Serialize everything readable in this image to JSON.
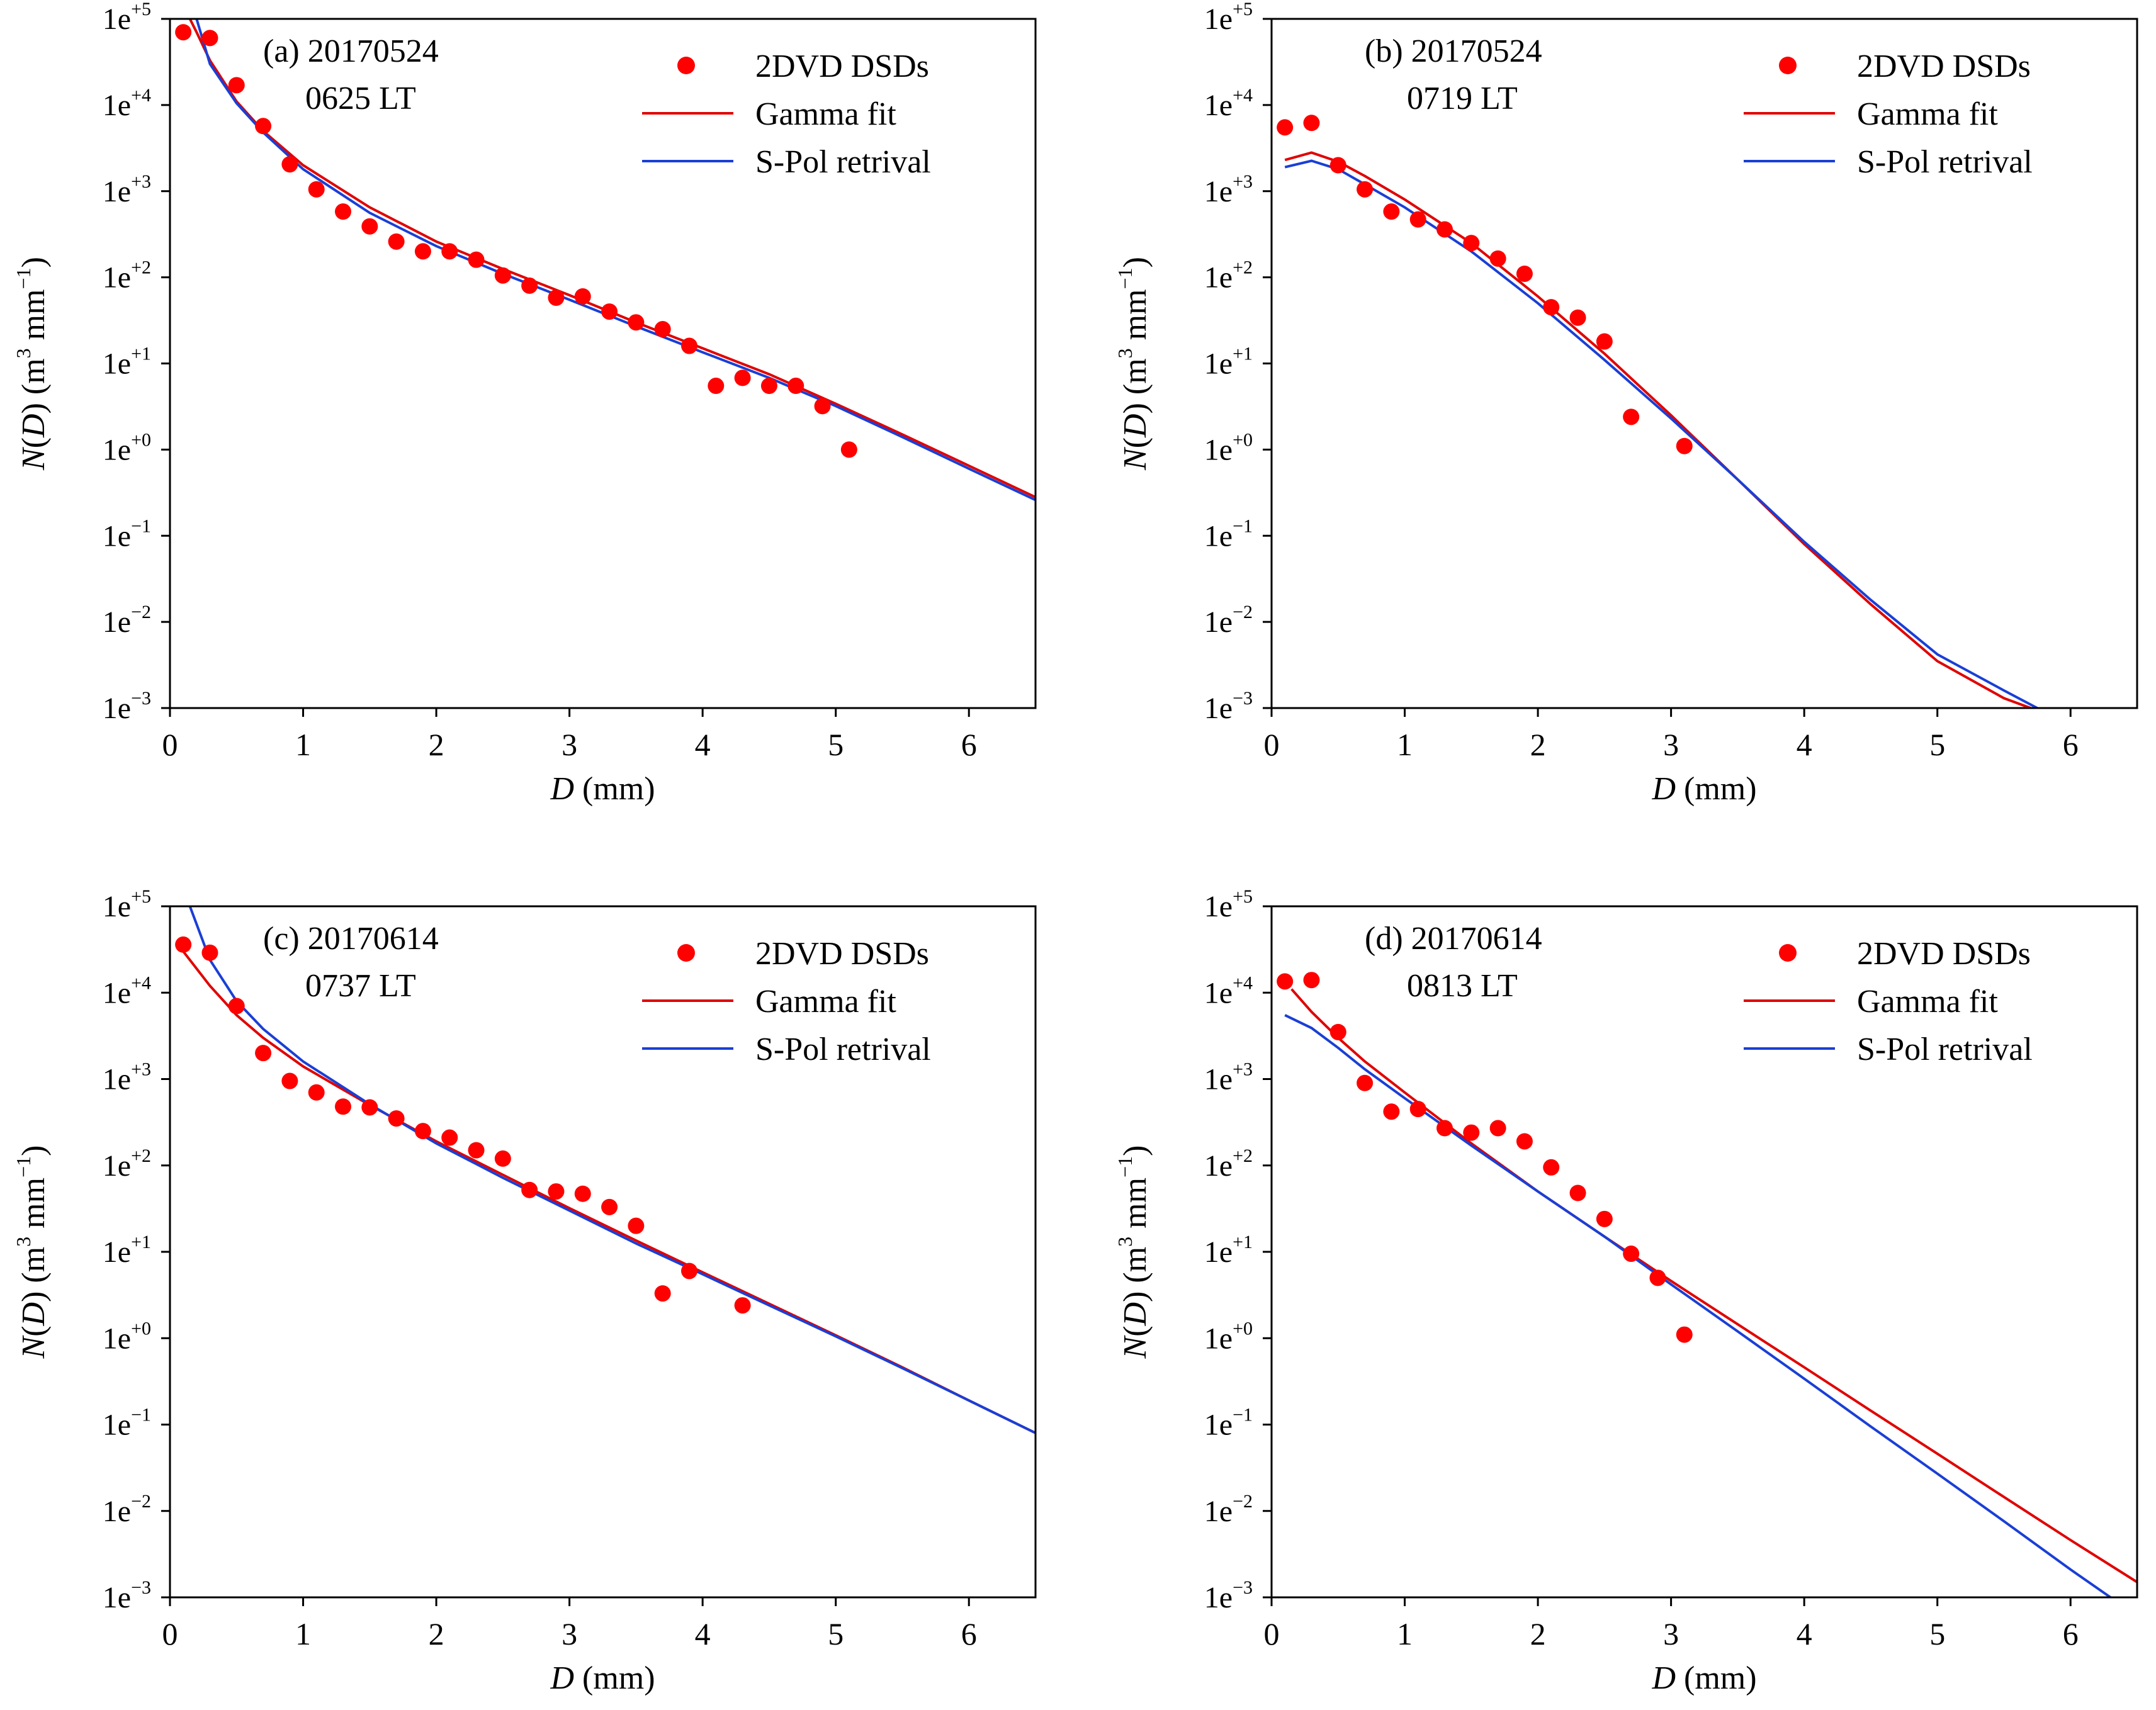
{
  "colors": {
    "dvd": "#ff0000",
    "gamma": "#e00000",
    "spol": "#1a3fd6",
    "axis": "#000000"
  },
  "legend_labels": [
    "2DVD DSDs",
    "Gamma fit",
    "S-Pol retrival"
  ],
  "chart_data": [
    {
      "type": "scatter+line",
      "panel": "a",
      "title_line1": "(a) 20170524",
      "title_line2": "0625 LT",
      "xlabel_italic": "D",
      "xlabel_rest": " (mm)",
      "ylabel_italic": "N",
      "ylabel_d_italic": "D",
      "ylabel_rest": " (m",
      "ylabel_unit_tail": " mm",
      "ylabel_exp1": "3",
      "ylabel_exp2": "−1",
      "xlim": [
        0,
        6.5
      ],
      "ylim_log10": [
        -3,
        5
      ],
      "xticks": [
        0,
        1,
        2,
        3,
        4,
        5,
        6
      ],
      "xtick_labels": [
        "0",
        "1",
        "2",
        "3",
        "4",
        "5",
        "6"
      ],
      "ytick_base": "1e",
      "yticks_log10": [
        5,
        4,
        3,
        2,
        1,
        0,
        -1,
        -2,
        -3
      ],
      "ytick_exps": [
        "+5",
        "+4",
        "+3",
        "+2",
        "+1",
        "+0",
        "−1",
        "−2",
        "−3"
      ],
      "series": [
        {
          "name": "2DVD DSDs",
          "kind": "scatter",
          "x": [
            0.1,
            0.3,
            0.5,
            0.7,
            0.9,
            1.1,
            1.3,
            1.5,
            1.7,
            1.9,
            2.1,
            2.3,
            2.5,
            2.7,
            2.9,
            3.1,
            3.3,
            3.5,
            3.7,
            3.9,
            4.1,
            4.3,
            4.5,
            4.7,
            4.9,
            5.1
          ],
          "y": [
            70000,
            60000,
            17000,
            5700,
            2050,
            1050,
            580,
            390,
            260,
            200,
            200,
            160,
            105,
            80,
            58,
            60,
            40,
            30,
            25,
            16,
            5.5,
            6.8,
            5.5,
            5.5,
            3.2,
            1.0
          ]
        },
        {
          "name": "Gamma fit",
          "kind": "line",
          "x": [
            0.15,
            0.2,
            0.3,
            0.5,
            0.7,
            1.0,
            1.5,
            2.0,
            2.5,
            3.0,
            3.5,
            4.0,
            4.5,
            5.0,
            5.5,
            6.0,
            6.5
          ],
          "y": [
            100000,
            70000,
            33000,
            11000,
            5000,
            2000,
            650,
            260,
            125,
            62,
            30,
            15,
            7.5,
            3.4,
            1.5,
            0.65,
            0.28
          ]
        },
        {
          "name": "S-Pol retrival",
          "kind": "line",
          "x": [
            0.2,
            0.3,
            0.5,
            0.7,
            1.0,
            1.5,
            2.0,
            2.5,
            3.0,
            3.5,
            4.0,
            4.5,
            5.0,
            5.5,
            6.0,
            6.5
          ],
          "y": [
            100000,
            30000,
            10500,
            4800,
            1800,
            560,
            230,
            110,
            55,
            27,
            13.5,
            6.8,
            3.2,
            1.4,
            0.6,
            0.26
          ]
        }
      ]
    },
    {
      "type": "scatter+line",
      "panel": "b",
      "title_line1": "(b) 20170524",
      "title_line2": "0719 LT",
      "xlabel_italic": "D",
      "xlabel_rest": " (mm)",
      "ylabel_italic": "N",
      "ylabel_d_italic": "D",
      "ylabel_rest": " (m",
      "ylabel_unit_tail": " mm",
      "ylabel_exp1": "3",
      "ylabel_exp2": "−1",
      "xlim": [
        0,
        6.5
      ],
      "ylim_log10": [
        -3,
        5
      ],
      "xticks": [
        0,
        1,
        2,
        3,
        4,
        5,
        6
      ],
      "xtick_labels": [
        "0",
        "1",
        "2",
        "3",
        "4",
        "5",
        "6"
      ],
      "ytick_base": "1e",
      "yticks_log10": [
        5,
        4,
        3,
        2,
        1,
        0,
        -1,
        -2,
        -3
      ],
      "ytick_exps": [
        "+5",
        "+4",
        "+3",
        "+2",
        "+1",
        "+0",
        "−1",
        "−2",
        "−3"
      ],
      "series": [
        {
          "name": "2DVD DSDs",
          "kind": "scatter",
          "x": [
            0.1,
            0.3,
            0.5,
            0.7,
            0.9,
            1.1,
            1.3,
            1.5,
            1.7,
            1.9,
            2.1,
            2.3,
            2.5,
            2.7,
            3.1
          ],
          "y": [
            5500,
            6200,
            2000,
            1050,
            580,
            470,
            360,
            250,
            165,
            110,
            45,
            34,
            18,
            2.4,
            1.1
          ]
        },
        {
          "name": "Gamma fit",
          "kind": "line",
          "x": [
            0.1,
            0.3,
            0.5,
            0.7,
            1.0,
            1.5,
            2.0,
            2.5,
            3.0,
            3.5,
            4.0,
            4.5,
            5.0,
            5.5,
            5.7
          ],
          "y": [
            2300,
            2800,
            2200,
            1500,
            800,
            250,
            60,
            13,
            2.5,
            0.45,
            0.08,
            0.016,
            0.0035,
            0.0013,
            0.001
          ]
        },
        {
          "name": "S-Pol retrival",
          "kind": "line",
          "x": [
            0.1,
            0.3,
            0.5,
            0.7,
            1.0,
            1.5,
            2.0,
            2.5,
            3.0,
            3.5,
            4.0,
            4.5,
            5.0,
            5.5,
            5.75
          ],
          "y": [
            1900,
            2250,
            1800,
            1200,
            650,
            200,
            50,
            11,
            2.3,
            0.45,
            0.085,
            0.018,
            0.0042,
            0.0016,
            0.001
          ]
        }
      ]
    },
    {
      "type": "scatter+line",
      "panel": "c",
      "title_line1": "(c) 20170614",
      "title_line2": "0737 LT",
      "xlabel_italic": "D",
      "xlabel_rest": " (mm)",
      "ylabel_italic": "N",
      "ylabel_d_italic": "D",
      "ylabel_rest": " (m",
      "ylabel_unit_tail": " mm",
      "ylabel_exp1": "3",
      "ylabel_exp2": "−1",
      "xlim": [
        0,
        6.5
      ],
      "ylim_log10": [
        -3,
        5
      ],
      "xticks": [
        0,
        1,
        2,
        3,
        4,
        5,
        6
      ],
      "xtick_labels": [
        "0",
        "1",
        "2",
        "3",
        "4",
        "5",
        "6"
      ],
      "ytick_base": "1e",
      "yticks_log10": [
        5,
        4,
        3,
        2,
        1,
        0,
        -1,
        -2,
        -3
      ],
      "ytick_exps": [
        "+5",
        "+4",
        "+3",
        "+2",
        "+1",
        "+0",
        "−1",
        "−2",
        "−3"
      ],
      "series": [
        {
          "name": "2DVD DSDs",
          "kind": "scatter",
          "x": [
            0.1,
            0.3,
            0.5,
            0.7,
            0.9,
            1.1,
            1.3,
            1.5,
            1.7,
            1.9,
            2.1,
            2.3,
            2.5,
            2.7,
            2.9,
            3.1,
            3.3,
            3.5,
            3.7,
            3.9,
            4.3
          ],
          "y": [
            36000,
            29000,
            7000,
            2000,
            950,
            700,
            480,
            470,
            350,
            250,
            210,
            150,
            120,
            52,
            50,
            47,
            33,
            20,
            3.3,
            6.0,
            2.4
          ]
        },
        {
          "name": "Gamma fit",
          "kind": "line",
          "x": [
            0.1,
            0.3,
            0.5,
            0.7,
            1.0,
            1.5,
            2.0,
            2.5,
            3.0,
            3.5,
            4.0,
            4.5,
            5.0,
            5.5,
            6.0,
            6.5
          ],
          "y": [
            30000,
            12000,
            5500,
            3000,
            1400,
            500,
            190,
            78,
            32,
            13.5,
            5.8,
            2.5,
            1.08,
            0.46,
            0.19,
            0.08
          ]
        },
        {
          "name": "S-Pol retrival",
          "kind": "line",
          "x": [
            0.15,
            0.3,
            0.5,
            0.7,
            1.0,
            1.5,
            2.0,
            2.5,
            3.0,
            3.5,
            4.0,
            4.5,
            5.0,
            5.5,
            6.0,
            6.5
          ],
          "y": [
            100000,
            24000,
            8000,
            3800,
            1600,
            510,
            180,
            72,
            30,
            12.5,
            5.5,
            2.4,
            1.05,
            0.45,
            0.19,
            0.08
          ]
        }
      ]
    },
    {
      "type": "scatter+line",
      "panel": "d",
      "title_line1": "(d) 20170614",
      "title_line2": "0813 LT",
      "xlabel_italic": "D",
      "xlabel_rest": " (mm)",
      "ylabel_italic": "N",
      "ylabel_d_italic": "D",
      "ylabel_rest": " (m",
      "ylabel_unit_tail": " mm",
      "ylabel_exp1": "3",
      "ylabel_exp2": "−1",
      "xlim": [
        0,
        6.5
      ],
      "ylim_log10": [
        -3,
        5
      ],
      "xticks": [
        0,
        1,
        2,
        3,
        4,
        5,
        6
      ],
      "xtick_labels": [
        "0",
        "1",
        "2",
        "3",
        "4",
        "5",
        "6"
      ],
      "ytick_base": "1e",
      "yticks_log10": [
        5,
        4,
        3,
        2,
        1,
        0,
        -1,
        -2,
        -3
      ],
      "ytick_exps": [
        "+5",
        "+4",
        "+3",
        "+2",
        "+1",
        "+0",
        "−1",
        "−2",
        "−3"
      ],
      "series": [
        {
          "name": "2DVD DSDs",
          "kind": "scatter",
          "x": [
            0.1,
            0.3,
            0.5,
            0.7,
            0.9,
            1.1,
            1.3,
            1.5,
            1.7,
            1.9,
            2.1,
            2.3,
            2.5,
            2.7,
            2.9,
            3.1
          ],
          "y": [
            13500,
            14000,
            3500,
            900,
            420,
            450,
            270,
            240,
            270,
            190,
            95,
            48,
            24,
            9.5,
            5.0,
            1.1
          ]
        },
        {
          "name": "Gamma fit",
          "kind": "line",
          "x": [
            0.15,
            0.3,
            0.5,
            0.7,
            1.0,
            1.5,
            2.0,
            2.5,
            3.0,
            3.5,
            4.0,
            4.5,
            5.0,
            5.5,
            6.0,
            6.5
          ],
          "y": [
            11000,
            6000,
            3000,
            1600,
            700,
            180,
            50,
            15,
            4.6,
            1.45,
            0.46,
            0.145,
            0.046,
            0.0145,
            0.0046,
            0.0015
          ]
        },
        {
          "name": "S-Pol retrival",
          "kind": "line",
          "x": [
            0.1,
            0.3,
            0.5,
            0.7,
            1.0,
            1.5,
            2.0,
            2.5,
            3.0,
            3.5,
            4.0,
            4.5,
            5.0,
            5.5,
            6.0,
            6.3
          ],
          "y": [
            5500,
            3900,
            2300,
            1300,
            600,
            170,
            50,
            15,
            4.2,
            1.2,
            0.34,
            0.095,
            0.027,
            0.0076,
            0.0021,
            0.001
          ]
        }
      ]
    }
  ]
}
